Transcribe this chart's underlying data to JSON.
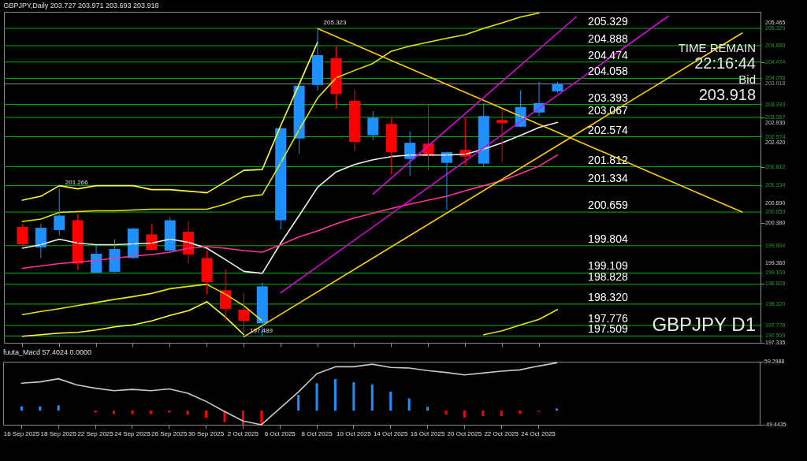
{
  "chart_data": [
    {
      "type": "candlestick",
      "title": "GBPJPY,Daily 203.727 203.971 203.693 203.918",
      "categories": [
        "16 Sep 2025",
        null,
        "18 Sep 2025",
        null,
        "22 Sep 2025",
        null,
        "24 Sep 2025",
        null,
        "26 Sep 2025",
        null,
        "30 Sep 2025",
        null,
        "2 Oct 2025",
        null,
        "6 Oct 2025",
        null,
        "8 Oct 2025",
        null,
        "10 Oct 2025",
        null,
        "14 Oct 2025",
        null,
        "16 Oct 2025",
        null,
        "20 Oct 2025",
        null,
        "22 Oct 2025",
        null,
        "24 Oct 2025",
        null,
        null,
        null,
        null,
        null,
        null,
        null,
        null,
        null,
        null,
        null
      ],
      "ohlc": [
        [
          200.28,
          200.35,
          199.8,
          199.84
        ],
        [
          199.76,
          200.36,
          199.49,
          200.26
        ],
        [
          200.2,
          201.266,
          200.07,
          200.57
        ],
        [
          200.45,
          200.61,
          199.19,
          199.35
        ],
        [
          199.12,
          199.8,
          199.12,
          199.6
        ],
        [
          199.14,
          199.97,
          199.12,
          199.72
        ],
        [
          199.49,
          200.26,
          199.47,
          200.24
        ],
        [
          200.09,
          200.36,
          199.68,
          199.7
        ],
        [
          199.68,
          200.53,
          199.66,
          200.45
        ],
        [
          200.16,
          200.42,
          199.35,
          199.58
        ],
        [
          199.49,
          199.68,
          198.57,
          198.88
        ],
        [
          198.67,
          199.21,
          197.89,
          198.2
        ],
        [
          198.18,
          198.61,
          197.6,
          197.89
        ],
        [
          197.83,
          198.86,
          197.489,
          198.77
        ],
        [
          200.45,
          202.8,
          200.22,
          202.79
        ],
        [
          202.53,
          203.88,
          202.13,
          203.87
        ],
        [
          203.89,
          205.323,
          203.74,
          204.65
        ],
        [
          204.57,
          204.88,
          203.29,
          203.66
        ],
        [
          203.49,
          203.76,
          202.2,
          202.44
        ],
        [
          202.61,
          203.23,
          202.49,
          203.06
        ],
        [
          202.9,
          203.06,
          201.62,
          202.18
        ],
        [
          202.01,
          202.71,
          201.58,
          202.42
        ],
        [
          202.4,
          203.39,
          201.72,
          202.09
        ],
        [
          201.91,
          202.2,
          200.71,
          202.18
        ],
        [
          202.24,
          203.08,
          201.83,
          202.07
        ],
        [
          201.89,
          203.43,
          201.81,
          203.1
        ],
        [
          203.0,
          203.29,
          201.93,
          202.92
        ],
        [
          202.83,
          203.76,
          202.81,
          203.33
        ],
        [
          203.19,
          203.97,
          203.1,
          203.43
        ],
        [
          203.727,
          203.971,
          203.693,
          203.918
        ],
        null,
        null,
        null,
        null,
        null,
        null,
        null,
        null,
        null,
        null
      ],
      "colors": [
        "#ff0000",
        "#1e90ff",
        "#1e90ff",
        "#ff0000",
        "#1e90ff",
        "#1e90ff",
        "#1e90ff",
        "#ff0000",
        "#1e90ff",
        "#ff0000",
        "#ff0000",
        "#ff0000",
        "#ff0000",
        "#1e90ff",
        "#1e90ff",
        "#1e90ff",
        "#1e90ff",
        "#ff0000",
        "#ff0000",
        "#1e90ff",
        "#ff0000",
        "#1e90ff",
        "#ff0000",
        "#1e90ff",
        "#ff0000",
        "#1e90ff",
        "#ff0000",
        "#1e90ff",
        "#1e90ff",
        "#1e90ff",
        null,
        null,
        null,
        null,
        null,
        null,
        null,
        null,
        null,
        null
      ],
      "series": [
        {
          "type": "line",
          "color": "#ffff33",
          "values": [
            200.96,
            201.06,
            201.33,
            201.25,
            201.33,
            201.33,
            201.33,
            201.23,
            201.23,
            201.19,
            201.15,
            201.43,
            201.72,
            201.74,
            202.86,
            203.91,
            204.98,
            null,
            null,
            null,
            null,
            null,
            null,
            null,
            null,
            null,
            null,
            null,
            null,
            null,
            null,
            null,
            null,
            null,
            null,
            null,
            null,
            null,
            null,
            null
          ]
        },
        {
          "type": "line",
          "color": "#e6e600",
          "values": [
            200.42,
            200.48,
            200.65,
            200.67,
            200.69,
            200.69,
            200.71,
            200.73,
            200.73,
            200.73,
            200.73,
            200.86,
            201.04,
            201.1,
            201.91,
            202.75,
            203.56,
            204.07,
            204.26,
            204.44,
            204.75,
            204.88,
            204.98,
            205.08,
            205.17,
            205.33,
            205.47,
            205.62,
            205.72,
            null,
            null,
            null,
            null,
            null,
            null,
            null,
            null,
            null,
            null,
            null
          ]
        },
        {
          "type": "line",
          "color": "#f0f0f0",
          "values": [
            199.74,
            199.83,
            199.97,
            199.87,
            199.83,
            199.83,
            199.85,
            199.87,
            199.97,
            199.89,
            199.74,
            199.45,
            199.15,
            199.1,
            199.87,
            200.57,
            201.29,
            201.68,
            201.87,
            201.99,
            202.07,
            202.11,
            202.11,
            202.11,
            202.13,
            202.26,
            202.42,
            202.61,
            202.81,
            202.94,
            null,
            null,
            null,
            null,
            null,
            null,
            null,
            null,
            null,
            null
          ]
        },
        {
          "type": "line",
          "color": "#ff3399",
          "values": [
            199.23,
            199.29,
            199.35,
            199.39,
            199.43,
            199.49,
            199.54,
            199.58,
            199.64,
            199.74,
            199.78,
            199.74,
            199.68,
            199.64,
            199.83,
            200.03,
            200.18,
            200.36,
            200.51,
            200.63,
            200.75,
            200.86,
            200.96,
            201.06,
            201.2,
            201.33,
            201.46,
            201.64,
            201.83,
            202.11,
            null,
            null,
            null,
            null,
            null,
            null,
            null,
            null,
            null,
            null
          ]
        },
        {
          "type": "line",
          "color": "#e6e600",
          "values": [
            198.05,
            198.13,
            198.2,
            198.28,
            198.36,
            198.44,
            198.51,
            198.59,
            198.71,
            198.77,
            198.82,
            198.57,
            198.28,
            197.89,
            null,
            null,
            null,
            null,
            null,
            null,
            null,
            null,
            null,
            null,
            null,
            null,
            null,
            null,
            null,
            null,
            null,
            null,
            null,
            null,
            null,
            null,
            null,
            null,
            null,
            null
          ]
        },
        {
          "type": "line",
          "color": "#e6e600",
          "values": [
            null,
            null,
            null,
            null,
            null,
            null,
            null,
            null,
            null,
            null,
            null,
            null,
            null,
            null,
            null,
            null,
            null,
            null,
            null,
            null,
            null,
            null,
            null,
            null,
            null,
            197.54,
            197.64,
            197.79,
            197.93,
            198.18,
            null,
            null,
            null,
            null,
            null,
            null,
            null,
            null,
            null,
            null
          ]
        },
        {
          "type": "line",
          "color": "#ffff33",
          "values": [
            197.5,
            197.54,
            197.58,
            197.6,
            197.66,
            197.74,
            197.79,
            197.89,
            198.03,
            198.15,
            198.38,
            197.99,
            197.54,
            null,
            null,
            null,
            null,
            null,
            null,
            null,
            null,
            null,
            null,
            null,
            null,
            null,
            null,
            null,
            null,
            null,
            null,
            null,
            null,
            null,
            null,
            null,
            null,
            null,
            null,
            null
          ]
        },
        {
          "type": "line",
          "color": "#ffcc00",
          "values": [
            null,
            null,
            null,
            null,
            null,
            null,
            null,
            null,
            null,
            null,
            null,
            null,
            null,
            null,
            null,
            null,
            205.323,
            null,
            null,
            null,
            null,
            null,
            null,
            null,
            null,
            null,
            null,
            null,
            null,
            null,
            null,
            null,
            null,
            null,
            null,
            null,
            null,
            null,
            null,
            200.659
          ]
        },
        {
          "type": "line",
          "color": "#ffcc00",
          "values": [
            null,
            null,
            null,
            null,
            null,
            null,
            null,
            null,
            null,
            null,
            null,
            null,
            197.489,
            null,
            null,
            null,
            null,
            null,
            null,
            null,
            null,
            null,
            null,
            null,
            null,
            null,
            null,
            null,
            null,
            null,
            null,
            null,
            null,
            null,
            null,
            null,
            null,
            null,
            null,
            205.21
          ]
        },
        {
          "type": "line",
          "color": "#dd00dd",
          "values": [
            null,
            null,
            null,
            null,
            null,
            null,
            null,
            null,
            null,
            null,
            null,
            null,
            null,
            null,
            198.61,
            null,
            null,
            null,
            null,
            null,
            null,
            null,
            null,
            null,
            null,
            null,
            null,
            null,
            null,
            null,
            null,
            null,
            null,
            null,
            null,
            205.64,
            null,
            null,
            null,
            null
          ]
        },
        {
          "type": "line",
          "color": "#dd00dd",
          "values": [
            null,
            null,
            null,
            null,
            null,
            null,
            null,
            null,
            null,
            null,
            null,
            null,
            null,
            null,
            null,
            null,
            null,
            null,
            null,
            201.12,
            null,
            null,
            null,
            null,
            null,
            null,
            null,
            null,
            null,
            null,
            205.62,
            null,
            null,
            null,
            null,
            null,
            null,
            null,
            null,
            null
          ]
        }
      ],
      "ref_lines": [
        {
          "axis": "y",
          "value": 205.329,
          "label": "205.329",
          "color": "#00b000"
        },
        {
          "axis": "y",
          "value": 204.888,
          "label": "204.888",
          "color": "#00b000"
        },
        {
          "axis": "y",
          "value": 204.474,
          "label": "204.474",
          "color": "#00b000"
        },
        {
          "axis": "y",
          "value": 204.058,
          "label": "204.058",
          "color": "#00b000"
        },
        {
          "axis": "y",
          "value": 203.918,
          "label": "203.918",
          "color": "#909090"
        },
        {
          "axis": "y",
          "value": 203.393,
          "label": "203.393",
          "color": "#00b000"
        },
        {
          "axis": "y",
          "value": 203.067,
          "label": "203.067",
          "color": "#00b000"
        },
        {
          "axis": "y",
          "value": 202.574,
          "label": "202.574",
          "color": "#00b000"
        },
        {
          "axis": "y",
          "value": 201.812,
          "label": "201.812",
          "color": "#00b000"
        },
        {
          "axis": "y",
          "value": 201.334,
          "label": "201.334",
          "color": "#00b000"
        },
        {
          "axis": "y",
          "value": 200.659,
          "label": "200.659",
          "color": "#00b000"
        },
        {
          "axis": "y",
          "value": 199.804,
          "label": "199.804",
          "color": "#00b000"
        },
        {
          "axis": "y",
          "value": 199.109,
          "label": "199.109",
          "color": "#00b000"
        },
        {
          "axis": "y",
          "value": 198.828,
          "label": "198.828",
          "color": "#00b000"
        },
        {
          "axis": "y",
          "value": 198.32,
          "label": "198.320",
          "color": "#00b000"
        },
        {
          "axis": "y",
          "value": 197.776,
          "label": "197.776",
          "color": "#00b000"
        },
        {
          "axis": "y",
          "value": 197.509,
          "label": "197.509",
          "color": "#00b000"
        }
      ],
      "annotations": [
        "TIME REMAIN",
        "22:16:44",
        "Bid",
        "203.918",
        "GBPJPY D1",
        {
          "text": "205.323",
          "x": "8 Oct 2025",
          "y": 205.323
        },
        {
          "text": "201.266",
          "x": "18 Sep 2025",
          "y": 201.266
        },
        {
          "text": "197.489",
          "x": "2 Oct 2025",
          "y": 197.489
        }
      ],
      "ylim": [
        197.335,
        205.75
      ],
      "yticks": [
        205.465,
        {
          "value": 202.93,
          "label": "202.930"
        },
        {
          "value": 202.42,
          "label": "202.420"
        },
        {
          "value": 200.89,
          "label": "200.890"
        },
        {
          "value": 200.38,
          "label": "200.380"
        },
        {
          "value": 199.36,
          "label": "199.360"
        },
        197.335
      ],
      "tick_labels": "y"
    },
    {
      "type": "line",
      "title": "fuuta_Macd 57.4024 0.0000",
      "categories": [
        "16 Sep 2025",
        null,
        "18 Sep 2025",
        null,
        "22 Sep 2025",
        null,
        "24 Sep 2025",
        null,
        "26 Sep 2025",
        null,
        "30 Sep 2025",
        null,
        "2 Oct 2025",
        null,
        "6 Oct 2025",
        null,
        "8 Oct 2025",
        null,
        "10 Oct 2025",
        null,
        "14 Oct 2025",
        null,
        "16 Oct 2025",
        null,
        "20 Oct 2025",
        null,
        "22 Oct 2025",
        null,
        "24 Oct 2025",
        null,
        null,
        null,
        null,
        null,
        null,
        null,
        null,
        null,
        null,
        null
      ],
      "series": [
        {
          "type": "bar",
          "base": [
            -25,
            -25,
            -25,
            null,
            -25,
            -25,
            -25,
            -25,
            -25,
            -25,
            -25,
            -25,
            -25,
            -25,
            null,
            -25,
            -25,
            -25,
            -25,
            -25,
            -25,
            -25,
            -25,
            -25,
            -25,
            -25,
            -25,
            -25,
            -25,
            -25,
            null,
            null,
            null,
            null,
            null,
            null,
            null,
            null,
            null,
            null
          ],
          "values": [
            7.2,
            7.2,
            9.1,
            null,
            -3.6,
            -6.2,
            -6.2,
            -6.2,
            -3.6,
            -7.2,
            -12.7,
            -19.9,
            -24.4,
            -24.4,
            null,
            27.2,
            47.1,
            54.4,
            48.9,
            45.3,
            32.6,
            21.0,
            6.5,
            -6.5,
            -12.0,
            -9.4,
            -9.4,
            -5.4,
            -1.8,
            3.6,
            null,
            null,
            null,
            null,
            null,
            null,
            null,
            null,
            null,
            null
          ],
          "colors": [
            "#1e90ff",
            "#1e90ff",
            "#1e90ff",
            null,
            "#ff0000",
            "#ff0000",
            "#ff0000",
            "#ff0000",
            "#ff0000",
            "#ff0000",
            "#ff0000",
            "#ff0000",
            "#ff0000",
            "#ff0000",
            null,
            "#1e90ff",
            "#1e90ff",
            "#1e90ff",
            "#1e90ff",
            "#1e90ff",
            "#1e90ff",
            "#1e90ff",
            "#1e90ff",
            "#ff0000",
            "#ff0000",
            "#ff0000",
            "#ff0000",
            "#ff0000",
            "#ff0000",
            "#1e90ff",
            null,
            null,
            null,
            null,
            null,
            null,
            null,
            null,
            null,
            null
          ]
        },
        {
          "type": "line",
          "color": "#c8c8c8",
          "values": [
            22.3,
            24.5,
            29.9,
            19.1,
            13.6,
            9.3,
            11.5,
            9.3,
            12.5,
            4.9,
            -9.2,
            -26.6,
            -43.0,
            -49.4,
            -21.2,
            7.1,
            38.6,
            50.6,
            50.6,
            55.0,
            49.5,
            48.4,
            44.1,
            40.8,
            36.5,
            39.7,
            43.0,
            45.2,
            51.7,
            57.4024,
            null,
            null,
            null,
            null,
            null,
            null,
            null,
            null,
            null,
            null
          ]
        }
      ],
      "ylim": [
        -49.4435,
        59.2988
      ],
      "yticks": [
        59.2988,
        -49.4435
      ]
    }
  ]
}
